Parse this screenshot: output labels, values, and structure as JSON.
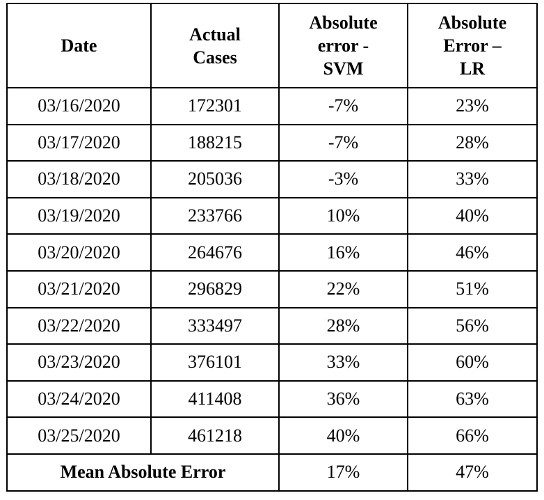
{
  "table": {
    "headers": [
      "Date",
      "Actual\nCases",
      "Absolute\nerror -\nSVM",
      "Absolute\nError –\nLR"
    ],
    "header_lines": [
      [
        "Date"
      ],
      [
        "Actual",
        "Cases"
      ],
      [
        "Absolute",
        "error -",
        "SVM"
      ],
      [
        "Absolute",
        "Error –",
        "LR"
      ]
    ],
    "rows": [
      [
        "03/16/2020",
        "172301",
        "-7%",
        "23%"
      ],
      [
        "03/17/2020",
        "188215",
        "-7%",
        "28%"
      ],
      [
        "03/18/2020",
        "205036",
        "-3%",
        "33%"
      ],
      [
        "03/19/2020",
        "233766",
        "10%",
        "40%"
      ],
      [
        "03/20/2020",
        "264676",
        "16%",
        "46%"
      ],
      [
        "03/21/2020",
        "296829",
        "22%",
        "51%"
      ],
      [
        "03/22/2020",
        "333497",
        "28%",
        "56%"
      ],
      [
        "03/23/2020",
        "376101",
        "33%",
        "60%"
      ],
      [
        "03/24/2020",
        "411408",
        "36%",
        "63%"
      ],
      [
        "03/25/2020",
        "461218",
        "40%",
        "66%"
      ]
    ],
    "footer": {
      "label": "Mean Absolute Error",
      "svm": "17%",
      "lr": "47%"
    }
  }
}
